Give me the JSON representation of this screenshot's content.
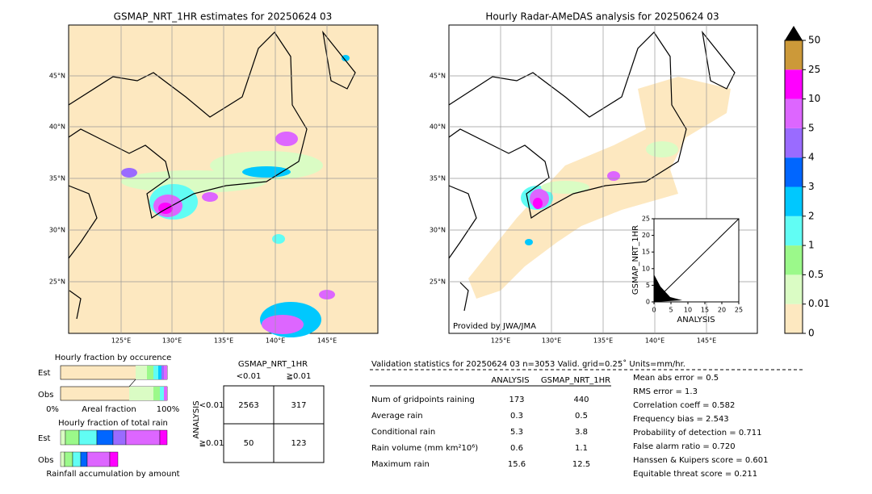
{
  "left_map": {
    "title": "GSMAP_NRT_1HR estimates for 20250624 03",
    "lat_labels": [
      "45°N",
      "40°N",
      "35°N",
      "30°N",
      "25°N"
    ],
    "lon_labels": [
      "125°E",
      "130°E",
      "135°E",
      "140°E",
      "145°E"
    ]
  },
  "right_map": {
    "title": "Hourly Radar-AMeDAS analysis for 20250624 03",
    "lat_labels": [
      "45°N",
      "40°N",
      "35°N",
      "30°N",
      "25°N"
    ],
    "lon_labels": [
      "125°E",
      "130°E",
      "135°E",
      "140°E",
      "145°E"
    ],
    "credit": "Provided by JWA/JMA"
  },
  "scatter": {
    "xlabel": "ANALYSIS",
    "ylabel": "GSMAP_NRT_1HR",
    "xlim": [
      0,
      25
    ],
    "ylim": [
      0,
      25
    ],
    "xticks": [
      0,
      5,
      10,
      15,
      20,
      25
    ],
    "yticks": [
      0,
      5,
      10,
      15,
      20,
      25
    ]
  },
  "colorbar": {
    "labels": [
      "0",
      "0.01",
      "0.5",
      "1",
      "2",
      "3",
      "4",
      "5",
      "10",
      "25",
      "50"
    ],
    "colors": [
      "#fde8c0",
      "#dafcc4",
      "#9bf98a",
      "#61fdf4",
      "#00c8fe",
      "#0066ff",
      "#9a6bff",
      "#dd66ff",
      "#ff00ff",
      "#cc9939"
    ]
  },
  "fraction_occurrence": {
    "title": "Hourly fraction by occurence",
    "rows": [
      "Est",
      "Obs"
    ],
    "axis": [
      "0%",
      "Areal fraction",
      "100%"
    ]
  },
  "fraction_total": {
    "title": "Hourly fraction of total rain",
    "rows": [
      "Est",
      "Obs"
    ],
    "footer": "Rainfall accumulation by amount"
  },
  "contingency": {
    "title": "GSMAP_NRT_1HR",
    "col_headers": [
      "<0.01",
      "≧0.01"
    ],
    "axis_label": "ANALYSIS",
    "row_headers": [
      "<0.01",
      "≧0.01"
    ],
    "cells": [
      [
        "2563",
        "317"
      ],
      [
        "50",
        "123"
      ]
    ]
  },
  "validation": {
    "header": "Validation statistics for 20250624 03  n=3053 Valid. grid=0.25˚ Units=mm/hr.",
    "columns": [
      "ANALYSIS",
      "GSMAP_NRT_1HR"
    ],
    "rows": [
      [
        "Num of gridpoints raining",
        "173",
        "440"
      ],
      [
        "Average rain",
        "0.3",
        "0.5"
      ],
      [
        "Conditional rain",
        "5.3",
        "3.8"
      ],
      [
        "Rain volume (mm km²10⁶)",
        "0.6",
        "1.1"
      ],
      [
        "Maximum rain",
        "15.6",
        "12.5"
      ]
    ],
    "scores": [
      "Mean abs error =    0.5",
      "RMS error =    1.3",
      "Correlation coeff =  0.582",
      "Frequency bias =  2.543",
      "Probability of detection =  0.711",
      "False alarm ratio =  0.720",
      "Hanssen & Kuipers score =  0.601",
      "Equitable threat score =  0.211"
    ]
  }
}
